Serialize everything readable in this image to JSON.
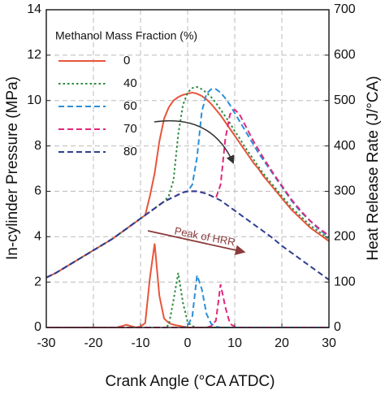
{
  "chart_data": {
    "type": "line",
    "x_label": "Crank Angle (°CA ATDC)",
    "y_label": "In-cylinder Pressure (MPa)",
    "y2_label": "Heat Release Rate (J/°CA)",
    "legend_title": "Methanol Mass Fraction (%)",
    "annotations": [
      "Peak of HRR"
    ],
    "grid": true,
    "legend": "upper left",
    "xlim": [
      -30,
      30
    ],
    "xticks": [
      -30,
      -20,
      -10,
      0,
      10,
      20,
      30
    ],
    "ylim": [
      0,
      14
    ],
    "yticks": [
      0,
      2,
      4,
      6,
      8,
      10,
      12,
      14
    ],
    "y2lim": [
      0,
      700
    ],
    "y2ticks": [
      0,
      100,
      200,
      300,
      400,
      500,
      600,
      700
    ],
    "x": [
      -30,
      -28,
      -26,
      -24,
      -22,
      -20,
      -18,
      -16,
      -15,
      -14,
      -13,
      -12,
      -11,
      -10,
      -9,
      -8,
      -7,
      -6,
      -5,
      -4,
      -3,
      -2,
      -1,
      0,
      1,
      2,
      3,
      4,
      5,
      6,
      7,
      8,
      9,
      10,
      11,
      12,
      13,
      14,
      15,
      16,
      18,
      20,
      22,
      24,
      26,
      28,
      30
    ],
    "series": [
      {
        "name": "0",
        "color": "#e8553b",
        "dash": "solid",
        "values": [
          2.2,
          2.4,
          2.65,
          2.9,
          3.15,
          3.4,
          3.65,
          3.9,
          4.05,
          4.2,
          4.35,
          4.5,
          4.65,
          4.8,
          4.95,
          5.8,
          6.8,
          8.2,
          9.2,
          9.7,
          10.0,
          10.15,
          10.25,
          10.3,
          10.35,
          10.3,
          10.2,
          10.05,
          9.85,
          9.6,
          9.35,
          9.05,
          8.75,
          8.45,
          8.15,
          7.85,
          7.55,
          7.25,
          7.0,
          6.7,
          6.2,
          5.7,
          5.2,
          4.8,
          4.4,
          4.1,
          3.8
        ]
      },
      {
        "name": "40",
        "color": "#2e8b3e",
        "dash": "dotted",
        "values": [
          2.2,
          2.4,
          2.65,
          2.9,
          3.15,
          3.4,
          3.65,
          3.9,
          4.05,
          4.2,
          4.35,
          4.5,
          4.65,
          4.8,
          4.95,
          5.1,
          5.25,
          5.4,
          5.55,
          5.8,
          6.5,
          8.5,
          9.8,
          10.35,
          10.55,
          10.6,
          10.5,
          10.35,
          10.15,
          9.9,
          9.6,
          9.3,
          9.0,
          8.65,
          8.35,
          8.0,
          7.7,
          7.4,
          7.1,
          6.8,
          6.3,
          5.8,
          5.3,
          4.9,
          4.5,
          4.2,
          3.9
        ]
      },
      {
        "name": "60",
        "color": "#2a8fd8",
        "dash": "dashed",
        "values": [
          2.2,
          2.4,
          2.65,
          2.9,
          3.15,
          3.4,
          3.65,
          3.9,
          4.05,
          4.2,
          4.35,
          4.5,
          4.65,
          4.8,
          4.95,
          5.1,
          5.25,
          5.4,
          5.55,
          5.65,
          5.75,
          5.85,
          5.95,
          6.0,
          6.3,
          7.5,
          9.5,
          10.3,
          10.5,
          10.5,
          10.35,
          10.1,
          9.8,
          9.45,
          9.1,
          8.75,
          8.4,
          8.05,
          7.7,
          7.4,
          6.8,
          6.2,
          5.6,
          5.1,
          4.7,
          4.3,
          4.0
        ]
      },
      {
        "name": "70",
        "color": "#e0287a",
        "dash": "dashed",
        "values": [
          2.2,
          2.4,
          2.65,
          2.9,
          3.15,
          3.4,
          3.65,
          3.9,
          4.05,
          4.2,
          4.35,
          4.5,
          4.65,
          4.8,
          4.95,
          5.1,
          5.25,
          5.4,
          5.55,
          5.65,
          5.75,
          5.85,
          5.95,
          6.0,
          6.0,
          6.0,
          5.95,
          5.9,
          5.8,
          5.7,
          6.3,
          8.3,
          9.4,
          9.6,
          9.4,
          9.0,
          8.6,
          8.2,
          7.85,
          7.5,
          6.85,
          6.25,
          5.65,
          5.15,
          4.7,
          4.35,
          4.05
        ]
      },
      {
        "name": "80",
        "color": "#2f3f8f",
        "dash": "dashed",
        "values": [
          2.2,
          2.4,
          2.65,
          2.9,
          3.15,
          3.4,
          3.65,
          3.9,
          4.05,
          4.2,
          4.35,
          4.5,
          4.65,
          4.8,
          4.95,
          5.1,
          5.25,
          5.4,
          5.55,
          5.65,
          5.75,
          5.85,
          5.95,
          6.0,
          6.0,
          6.0,
          5.95,
          5.9,
          5.8,
          5.7,
          5.6,
          5.45,
          5.3,
          5.15,
          5.0,
          4.85,
          4.7,
          4.55,
          4.4,
          4.25,
          3.95,
          3.6,
          3.3,
          3.0,
          2.7,
          2.4,
          2.1
        ]
      },
      {
        "color": "#e8553b",
        "dash": "solid",
        "axis": "y2",
        "values": [
          0,
          0,
          0,
          0,
          0,
          0,
          0,
          0,
          0,
          3,
          6,
          3,
          0,
          2,
          10,
          110,
          185,
          70,
          20,
          10,
          6,
          4,
          2,
          0,
          0,
          0,
          0,
          0,
          0,
          0,
          0,
          0,
          0,
          0,
          0,
          0,
          0,
          0,
          0,
          0,
          0,
          0,
          0,
          0,
          0,
          0,
          0
        ]
      },
      {
        "color": "#2e8b3e",
        "dash": "dotted",
        "axis": "y2",
        "values": [
          0,
          0,
          0,
          0,
          0,
          0,
          0,
          0,
          0,
          0,
          0,
          0,
          0,
          0,
          0,
          0,
          0,
          0,
          0,
          5,
          60,
          120,
          55,
          12,
          3,
          0,
          0,
          0,
          0,
          0,
          0,
          0,
          0,
          0,
          0,
          0,
          0,
          0,
          0,
          0,
          0,
          0,
          0,
          0,
          0,
          0,
          0
        ]
      },
      {
        "color": "#2a8fd8",
        "dash": "dashed",
        "axis": "y2",
        "values": [
          0,
          0,
          0,
          0,
          0,
          0,
          0,
          0,
          0,
          0,
          0,
          0,
          0,
          0,
          0,
          0,
          0,
          0,
          0,
          0,
          0,
          0,
          0,
          3,
          25,
          115,
          85,
          30,
          8,
          2,
          0,
          0,
          0,
          0,
          0,
          0,
          0,
          0,
          0,
          0,
          0,
          0,
          0,
          0,
          0,
          0,
          0
        ]
      },
      {
        "color": "#e0287a",
        "dash": "dashed",
        "axis": "y2",
        "values": [
          0,
          0,
          0,
          0,
          0,
          0,
          0,
          0,
          0,
          0,
          0,
          0,
          0,
          0,
          0,
          0,
          0,
          0,
          0,
          0,
          0,
          0,
          0,
          0,
          0,
          0,
          0,
          0,
          3,
          15,
          95,
          45,
          8,
          2,
          0,
          0,
          0,
          0,
          0,
          0,
          0,
          0,
          0,
          0,
          0,
          0,
          0
        ]
      }
    ]
  }
}
